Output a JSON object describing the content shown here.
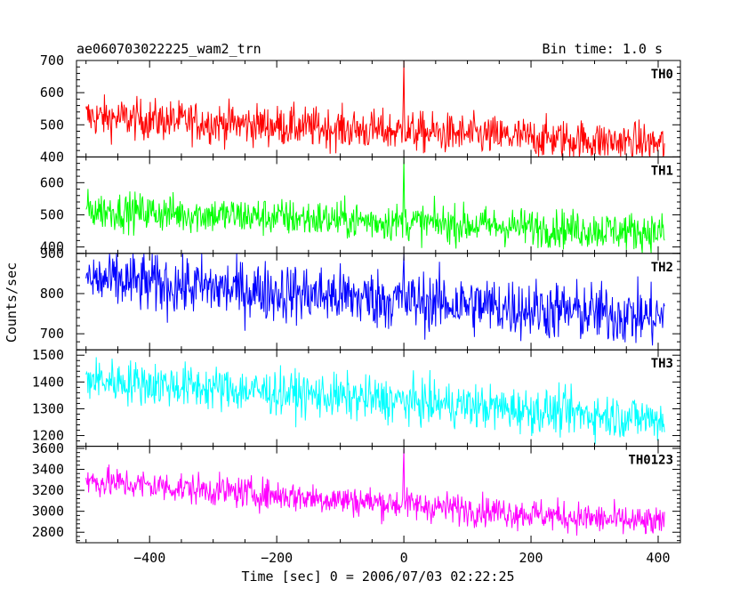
{
  "header": {
    "title": "ae060703022225_wam2_trn",
    "bin_time": "Bin time: 1.0 s"
  },
  "chart_data": {
    "type": "line",
    "title": "ae060703022225_wam2_trn",
    "xlabel": "Time [sec] 0 = 2006/07/03 02:22:25",
    "ylabel": "Counts/sec",
    "xlim": [
      -515,
      435
    ],
    "x_ticks": [
      -400,
      -200,
      0,
      200,
      400
    ],
    "x_tick_labels": [
      "−400",
      "−200",
      "0",
      "200",
      "400"
    ],
    "x_range": [
      -500,
      410
    ],
    "bin_size": 1.0,
    "grid": false,
    "legend": "none",
    "panels": [
      {
        "name": "TH0",
        "color": "#ff0000",
        "ylim": [
          400,
          700
        ],
        "y_ticks": [
          400,
          500,
          600,
          700
        ],
        "start_level": 525,
        "end_level": 440,
        "noise_amplitude": 32,
        "spike": {
          "x": 0,
          "peak": 700
        }
      },
      {
        "name": "TH1",
        "color": "#00ff00",
        "ylim": [
          380,
          680
        ],
        "y_ticks": [
          400,
          500,
          600
        ],
        "start_level": 515,
        "end_level": 445,
        "noise_amplitude": 30,
        "spike": {
          "x": 0,
          "peak": 680
        }
      },
      {
        "name": "TH2",
        "color": "#0000ff",
        "ylim": [
          660,
          900
        ],
        "y_ticks": [
          700,
          800,
          900
        ],
        "start_level": 835,
        "end_level": 740,
        "noise_amplitude": 38,
        "spike": {
          "x": 0,
          "peak": 900
        }
      },
      {
        "name": "TH3",
        "color": "#00ffff",
        "ylim": [
          1160,
          1520
        ],
        "y_ticks": [
          1200,
          1300,
          1400,
          1500
        ],
        "start_level": 1410,
        "end_level": 1260,
        "noise_amplitude": 42,
        "spike": null
      },
      {
        "name": "TH0123",
        "color": "#ff00ff",
        "ylim": [
          2700,
          3620
        ],
        "y_ticks": [
          2800,
          3000,
          3200,
          3400,
          3600
        ],
        "start_level": 3290,
        "end_level": 2880,
        "noise_amplitude": 75,
        "spike": {
          "x": 0,
          "peak": 3600
        }
      }
    ]
  }
}
